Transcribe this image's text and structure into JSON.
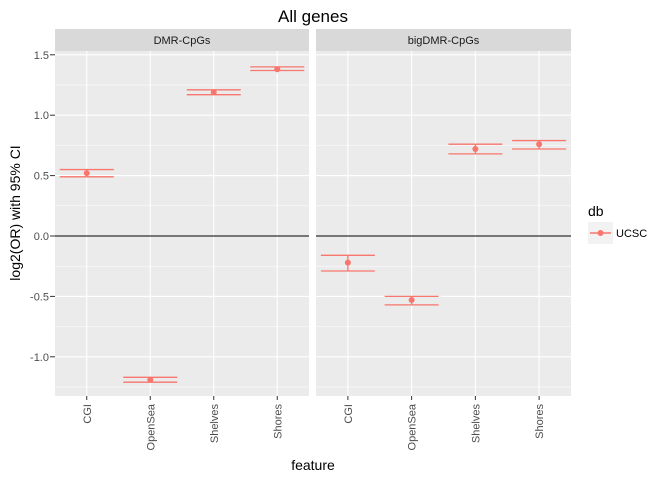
{
  "chart_data": {
    "type": "scatter",
    "title": "All genes",
    "xlabel": "feature",
    "ylabel": "log2(OR) with 95% CI",
    "categories": [
      "CGI",
      "OpenSea",
      "Shelves",
      "Shores"
    ],
    "ylim": [
      -1.25,
      1.6
    ],
    "yticks": [
      -1.0,
      -0.5,
      0.0,
      0.5,
      1.0,
      1.5
    ],
    "ytick_labels": [
      "-1.0",
      "-0.5",
      "0.0",
      "0.5",
      "1.0",
      "1.5"
    ],
    "reference_line": 0,
    "grid": true,
    "legend": {
      "title": "db",
      "entries": [
        "UCSC"
      ],
      "placement": "right"
    },
    "colors": {
      "series": "#f8766d",
      "panel_bg": "#ebebeb",
      "strip_bg": "#d9d9d9",
      "grid": "#ffffff",
      "refline": "#000000"
    },
    "panels": [
      {
        "label": "DMR-CpGs",
        "points": [
          {
            "x": "CGI",
            "y": 0.52,
            "lo": 0.49,
            "hi": 0.55
          },
          {
            "x": "OpenSea",
            "y": -1.19,
            "lo": -1.21,
            "hi": -1.17
          },
          {
            "x": "Shelves",
            "y": 1.19,
            "lo": 1.17,
            "hi": 1.21
          },
          {
            "x": "Shores",
            "y": 1.38,
            "lo": 1.37,
            "hi": 1.4
          }
        ]
      },
      {
        "label": "bigDMR-CpGs",
        "points": [
          {
            "x": "CGI",
            "y": -0.22,
            "lo": -0.29,
            "hi": -0.16
          },
          {
            "x": "OpenSea",
            "y": -0.53,
            "lo": -0.57,
            "hi": -0.5
          },
          {
            "x": "Shelves",
            "y": 0.72,
            "lo": 0.68,
            "hi": 0.76
          },
          {
            "x": "Shores",
            "y": 0.76,
            "lo": 0.72,
            "hi": 0.79
          }
        ]
      }
    ]
  }
}
